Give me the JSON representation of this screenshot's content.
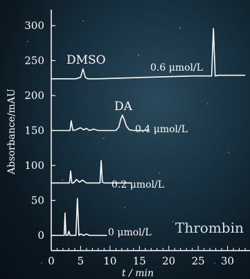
{
  "chart_data": {
    "type": "line",
    "xlabel": "t / min",
    "ylabel": "Absorbance/mAU",
    "xlim": [
      0,
      33
    ],
    "ylim": [
      -5,
      320
    ],
    "x_ticks": [
      0,
      5,
      10,
      15,
      20,
      25,
      30
    ],
    "y_ticks": [
      0,
      50,
      100,
      150,
      200,
      250,
      300
    ],
    "grid": false,
    "annotations": {
      "dmso": "DMSO",
      "da": "DA",
      "thrombin": "Thrombin"
    },
    "series": [
      {
        "name": "0 μmol/L",
        "baseline": 0,
        "x": [
          0,
          2.0,
          2.2,
          2.35,
          2.5,
          2.8,
          3.0,
          3.2,
          3.4,
          4.0,
          4.2,
          4.45,
          4.7,
          5.0,
          5.5,
          6.0,
          6.5,
          8.0,
          9.5
        ],
        "y": [
          0,
          0,
          0,
          32,
          0,
          0,
          6,
          0,
          0,
          0,
          0,
          53,
          0,
          2,
          0,
          2,
          0,
          0,
          0
        ]
      },
      {
        "name": "0.2 μmol/L",
        "baseline": 75,
        "x": [
          0,
          2.9,
          3.1,
          3.3,
          3.5,
          3.8,
          4.3,
          4.8,
          5.3,
          6.0,
          7.0,
          8.0,
          8.3,
          8.5,
          8.7,
          9.0,
          10.0,
          12.0,
          13.6
        ],
        "y": [
          75,
          75,
          75,
          92,
          75,
          75,
          80,
          76,
          79,
          75,
          75,
          75,
          75,
          107,
          76,
          75,
          75,
          75,
          75
        ]
      },
      {
        "name": "0.4 μmol/L",
        "baseline": 150,
        "x": [
          0,
          3.0,
          3.2,
          3.4,
          3.7,
          4.2,
          5.0,
          5.5,
          6.0,
          6.5,
          7.2,
          8.0,
          11.0,
          11.5,
          11.8,
          12.1,
          12.4,
          12.8,
          13.3,
          14.0,
          15.0,
          16.4
        ],
        "y": [
          150,
          150,
          150,
          164,
          150,
          151,
          154,
          151,
          153,
          150,
          152,
          150,
          150,
          155,
          165,
          172,
          166,
          156,
          151,
          150,
          150,
          150
        ]
      },
      {
        "name": "0.6 μmol/L",
        "baseline": 224,
        "x": [
          0,
          3.0,
          4.2,
          5.0,
          5.4,
          5.8,
          6.2,
          8.0,
          12.0,
          16.0,
          20.0,
          24.0,
          27.3,
          27.6,
          27.9,
          28.5,
          30.0,
          33.0
        ],
        "y": [
          224,
          224,
          224,
          226,
          238,
          226,
          224,
          224,
          225,
          226,
          227,
          228,
          228,
          296,
          228,
          229,
          229,
          229
        ]
      }
    ]
  }
}
